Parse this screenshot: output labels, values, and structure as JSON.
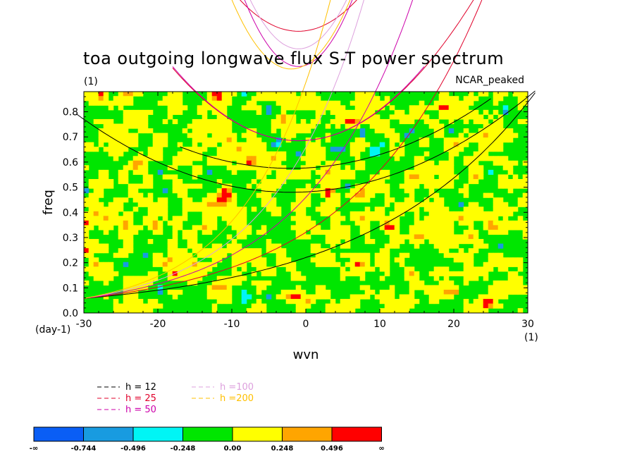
{
  "chart_data": {
    "type": "heatmap",
    "title": "toa outgoing longwave flux S-T power spectrum",
    "subtitle": "(1)",
    "dataset_label": "NCAR_peaked",
    "xlabel": "wvn",
    "ylabel": "freq",
    "x_unit": "(1)",
    "y_unit": "(day-1)",
    "xlim": [
      -30,
      30
    ],
    "ylim": [
      0,
      0.88
    ],
    "x_ticks": [
      -30,
      -20,
      -10,
      0,
      10,
      20,
      30
    ],
    "y_ticks": [
      0.0,
      0.1,
      0.2,
      0.3,
      0.4,
      0.5,
      0.6,
      0.7,
      0.8
    ],
    "x_tick_labels": [
      "-30",
      "-20",
      "-10",
      "0",
      "10",
      "20",
      "30"
    ],
    "y_tick_labels": [
      "0.0",
      "0.1",
      "0.2",
      "0.3",
      "0.4",
      "0.5",
      "0.6",
      "0.7",
      "0.8"
    ],
    "field_description": "noisy normalized power field mostly between -0.248 and 0.248",
    "colorbar": {
      "colors": [
        "#0a5ef5",
        "#189be0",
        "#00f5f5",
        "#00e600",
        "#ffff00",
        "#ffa500",
        "#ff0000"
      ],
      "labels": [
        "-∞",
        "-0.744",
        "-0.496",
        "-0.248",
        "0.00",
        "0.248",
        "0.496",
        "∞"
      ]
    },
    "series": [
      {
        "name": "h = 12",
        "color": "#000000"
      },
      {
        "name": "h = 25",
        "color": "#e0002a"
      },
      {
        "name": "h = 50",
        "color": "#cc00aa"
      },
      {
        "name": "h =100",
        "color": "#dda0dd"
      },
      {
        "name": "h =200",
        "color": "#ffc000"
      }
    ],
    "legend_placement": "bottom-left, below plot"
  }
}
